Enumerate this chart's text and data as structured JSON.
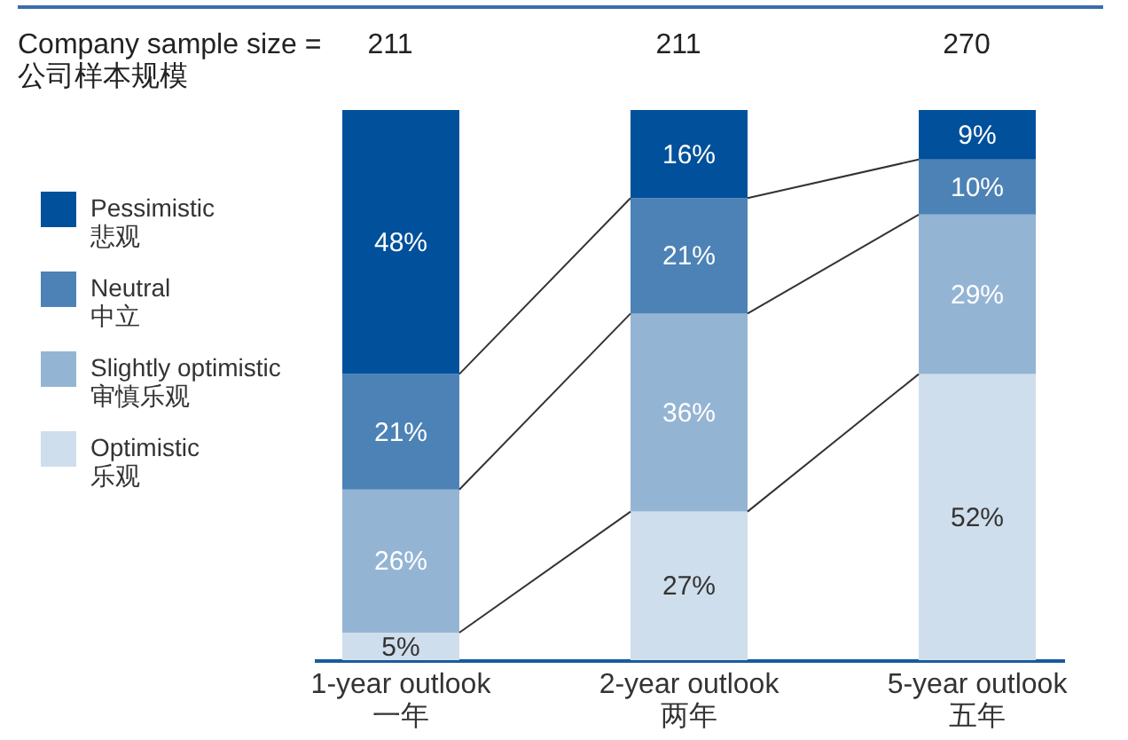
{
  "chart_data": {
    "type": "bar",
    "stacked": true,
    "legend": "left",
    "tick_labels": "x",
    "categories": [
      "1-year outlook\n一年",
      "2-year outlook\n两年",
      "5-year outlook\n五年"
    ],
    "series": [
      {
        "name": "Optimistic\n乐观",
        "color": "#cfdeec",
        "values": [
          5,
          27,
          52
        ],
        "value_labels": [
          "5%",
          "27%",
          "52%"
        ]
      },
      {
        "name": "Slightly optimistic\n审慎乐观",
        "color": "#94b4d4",
        "values": [
          26,
          36,
          29
        ],
        "value_labels": [
          "26%",
          "36%",
          "29%"
        ]
      },
      {
        "name": "Neutral\n中立",
        "color": "#4c82b6",
        "values": [
          21,
          21,
          10
        ],
        "value_labels": [
          "21%",
          "21%",
          "10%"
        ]
      },
      {
        "name": "Pessimistic\n悲观",
        "color": "#00509b",
        "values": [
          48,
          16,
          9
        ],
        "value_labels": [
          "48%",
          "16%",
          "9%"
        ]
      }
    ],
    "annotations": [
      "Company sample size =\n公司样本规模",
      "211",
      "211",
      "270"
    ]
  }
}
